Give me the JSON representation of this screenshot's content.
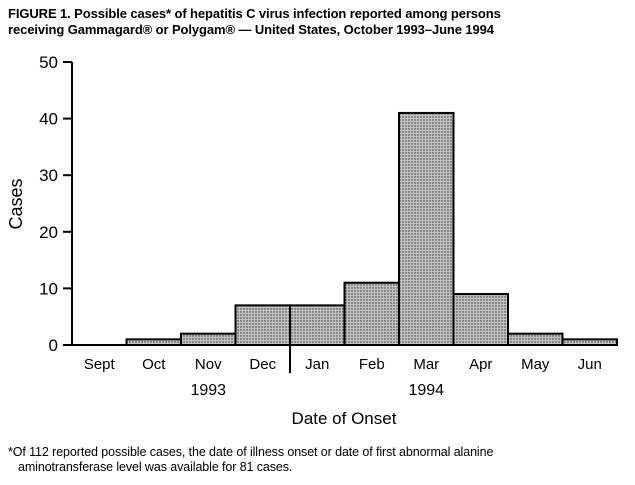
{
  "figure": {
    "title_lines": [
      "FIGURE 1. Possible cases* of hepatitis C virus infection reported among persons",
      "receiving Gammagard® or Polygam® — United States, October 1993–June 1994"
    ],
    "footnote_lines": [
      "*Of 112 reported possible cases, the date of illness onset or date of first abnormal alanine",
      "aminotransferase level was available for 81 cases."
    ]
  },
  "chart_data": {
    "type": "bar",
    "subtype": "histogram",
    "title": "Possible cases of hepatitis C virus infection reported among persons receiving Gammagard or Polygam — United States, October 1993–June 1994",
    "categories": [
      "Sept",
      "Oct",
      "Nov",
      "Dec",
      "Jan",
      "Feb",
      "Mar",
      "Apr",
      "May",
      "Jun"
    ],
    "values": [
      0,
      1,
      2,
      7,
      7,
      11,
      41,
      9,
      2,
      1
    ],
    "total_cases_plotted": 81,
    "total_cases_reported": 112,
    "xlabel": "Date of Onset",
    "ylabel": "Cases",
    "ylim": [
      0,
      50
    ],
    "yticks": [
      0,
      10,
      20,
      30,
      40,
      50
    ],
    "grid": false,
    "year_labels": [
      {
        "label": "1993",
        "center_category_index": 2
      },
      {
        "label": "1994",
        "center_category_index": 6
      }
    ],
    "year_divider_after_category": "Dec",
    "bar_fill": "#c2c2c2",
    "bar_stipple": "#2f2f2f",
    "bar_border": "#000000",
    "axis_color": "#000000"
  }
}
